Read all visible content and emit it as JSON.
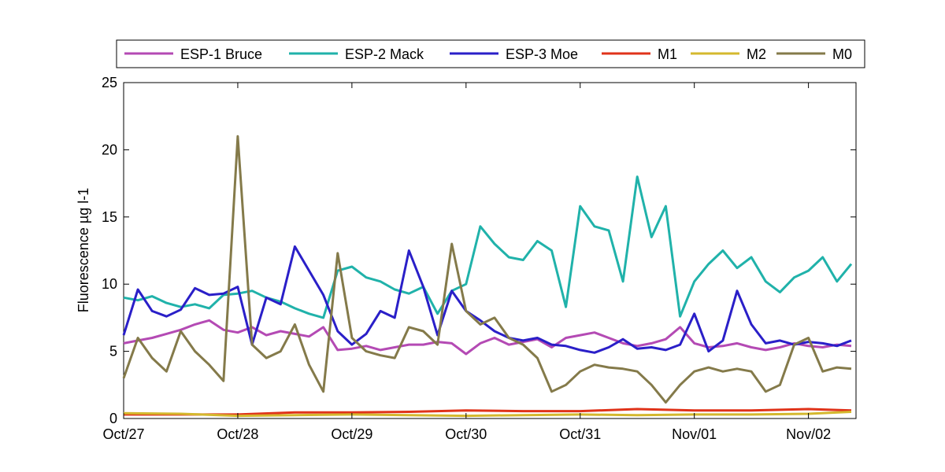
{
  "chart_data": {
    "type": "line",
    "title": "",
    "xlabel": "",
    "ylabel": "Fluorescence µg l-1",
    "xlim": [
      "2010-10-27",
      "2010-11-02T10:00"
    ],
    "ylim": [
      0,
      25
    ],
    "yticks": [
      0,
      5,
      10,
      15,
      20,
      25
    ],
    "xticks": [
      {
        "date": "2010-10-27",
        "label": "Oct/27"
      },
      {
        "date": "2010-10-28",
        "label": "Oct/28"
      },
      {
        "date": "2010-10-29",
        "label": "Oct/29"
      },
      {
        "date": "2010-10-30",
        "label": "Oct/30"
      },
      {
        "date": "2010-10-31",
        "label": "Oct/31"
      },
      {
        "date": "2010-11-01",
        "label": "Nov/01"
      },
      {
        "date": "2010-11-02",
        "label": "Nov/02"
      }
    ],
    "grid": false,
    "legend": "top, outside",
    "series": [
      {
        "name": "ESP-1 Bruce",
        "color": "#B44AB4",
        "points": [
          [
            "2010-10-27T00:00",
            5.6
          ],
          [
            "2010-10-27T03:00",
            5.8
          ],
          [
            "2010-10-27T06:00",
            6.0
          ],
          [
            "2010-10-27T09:00",
            6.3
          ],
          [
            "2010-10-27T12:00",
            6.6
          ],
          [
            "2010-10-27T15:00",
            7.0
          ],
          [
            "2010-10-27T18:00",
            7.3
          ],
          [
            "2010-10-27T21:00",
            6.6
          ],
          [
            "2010-10-28T00:00",
            6.4
          ],
          [
            "2010-10-28T03:00",
            6.8
          ],
          [
            "2010-10-28T06:00",
            6.2
          ],
          [
            "2010-10-28T09:00",
            6.5
          ],
          [
            "2010-10-28T12:00",
            6.3
          ],
          [
            "2010-10-28T15:00",
            6.1
          ],
          [
            "2010-10-28T18:00",
            6.8
          ],
          [
            "2010-10-28T21:00",
            5.1
          ],
          [
            "2010-10-29T00:00",
            5.2
          ],
          [
            "2010-10-29T03:00",
            5.4
          ],
          [
            "2010-10-29T06:00",
            5.1
          ],
          [
            "2010-10-29T09:00",
            5.3
          ],
          [
            "2010-10-29T12:00",
            5.5
          ],
          [
            "2010-10-29T15:00",
            5.5
          ],
          [
            "2010-10-29T18:00",
            5.7
          ],
          [
            "2010-10-29T21:00",
            5.6
          ],
          [
            "2010-10-30T00:00",
            4.8
          ],
          [
            "2010-10-30T03:00",
            5.6
          ],
          [
            "2010-10-30T06:00",
            6.0
          ],
          [
            "2010-10-30T09:00",
            5.5
          ],
          [
            "2010-10-30T12:00",
            5.7
          ],
          [
            "2010-10-30T15:00",
            5.9
          ],
          [
            "2010-10-30T18:00",
            5.3
          ],
          [
            "2010-10-30T21:00",
            6.0
          ],
          [
            "2010-10-31T00:00",
            6.2
          ],
          [
            "2010-10-31T03:00",
            6.4
          ],
          [
            "2010-10-31T06:00",
            6.0
          ],
          [
            "2010-10-31T09:00",
            5.6
          ],
          [
            "2010-10-31T12:00",
            5.4
          ],
          [
            "2010-10-31T15:00",
            5.6
          ],
          [
            "2010-10-31T18:00",
            5.9
          ],
          [
            "2010-10-31T21:00",
            6.8
          ],
          [
            "2010-11-01T00:00",
            5.6
          ],
          [
            "2010-11-01T03:00",
            5.3
          ],
          [
            "2010-11-01T06:00",
            5.4
          ],
          [
            "2010-11-01T09:00",
            5.6
          ],
          [
            "2010-11-01T12:00",
            5.3
          ],
          [
            "2010-11-01T15:00",
            5.1
          ],
          [
            "2010-11-01T18:00",
            5.3
          ],
          [
            "2010-11-01T21:00",
            5.6
          ],
          [
            "2010-11-02T00:00",
            5.4
          ],
          [
            "2010-11-02T03:00",
            5.3
          ],
          [
            "2010-11-02T06:00",
            5.5
          ],
          [
            "2010-11-02T09:00",
            5.4
          ]
        ]
      },
      {
        "name": "ESP-2 Mack",
        "color": "#20B2AA",
        "points": [
          [
            "2010-10-27T00:00",
            9.0
          ],
          [
            "2010-10-27T03:00",
            8.8
          ],
          [
            "2010-10-27T06:00",
            9.1
          ],
          [
            "2010-10-27T09:00",
            8.6
          ],
          [
            "2010-10-27T12:00",
            8.3
          ],
          [
            "2010-10-27T15:00",
            8.5
          ],
          [
            "2010-10-27T18:00",
            8.2
          ],
          [
            "2010-10-27T21:00",
            9.2
          ],
          [
            "2010-10-28T00:00",
            9.3
          ],
          [
            "2010-10-28T03:00",
            9.5
          ],
          [
            "2010-10-28T06:00",
            9.0
          ],
          [
            "2010-10-28T09:00",
            8.7
          ],
          [
            "2010-10-28T12:00",
            8.2
          ],
          [
            "2010-10-28T15:00",
            7.8
          ],
          [
            "2010-10-28T18:00",
            7.5
          ],
          [
            "2010-10-28T21:00",
            11.0
          ],
          [
            "2010-10-29T00:00",
            11.3
          ],
          [
            "2010-10-29T03:00",
            10.5
          ],
          [
            "2010-10-29T06:00",
            10.2
          ],
          [
            "2010-10-29T09:00",
            9.6
          ],
          [
            "2010-10-29T12:00",
            9.3
          ],
          [
            "2010-10-29T15:00",
            9.8
          ],
          [
            "2010-10-29T18:00",
            7.8
          ],
          [
            "2010-10-29T21:00",
            9.5
          ],
          [
            "2010-10-30T00:00",
            10.0
          ],
          [
            "2010-10-30T03:00",
            14.3
          ],
          [
            "2010-10-30T06:00",
            13.0
          ],
          [
            "2010-10-30T09:00",
            12.0
          ],
          [
            "2010-10-30T12:00",
            11.8
          ],
          [
            "2010-10-30T15:00",
            13.2
          ],
          [
            "2010-10-30T18:00",
            12.5
          ],
          [
            "2010-10-30T21:00",
            8.3
          ],
          [
            "2010-10-31T00:00",
            15.8
          ],
          [
            "2010-10-31T03:00",
            14.3
          ],
          [
            "2010-10-31T06:00",
            14.0
          ],
          [
            "2010-10-31T09:00",
            10.2
          ],
          [
            "2010-10-31T12:00",
            18.0
          ],
          [
            "2010-10-31T15:00",
            13.5
          ],
          [
            "2010-10-31T18:00",
            15.8
          ],
          [
            "2010-10-31T21:00",
            7.6
          ],
          [
            "2010-11-01T00:00",
            10.2
          ],
          [
            "2010-11-01T03:00",
            11.5
          ],
          [
            "2010-11-01T06:00",
            12.5
          ],
          [
            "2010-11-01T09:00",
            11.2
          ],
          [
            "2010-11-01T12:00",
            12.0
          ],
          [
            "2010-11-01T15:00",
            10.2
          ],
          [
            "2010-11-01T18:00",
            9.4
          ],
          [
            "2010-11-01T21:00",
            10.5
          ],
          [
            "2010-11-02T00:00",
            11.0
          ],
          [
            "2010-11-02T03:00",
            12.0
          ],
          [
            "2010-11-02T06:00",
            10.2
          ],
          [
            "2010-11-02T09:00",
            11.5
          ]
        ]
      },
      {
        "name": "ESP-3 Moe",
        "color": "#2A1FC8",
        "points": [
          [
            "2010-10-27T00:00",
            6.2
          ],
          [
            "2010-10-27T03:00",
            9.6
          ],
          [
            "2010-10-27T06:00",
            8.0
          ],
          [
            "2010-10-27T09:00",
            7.6
          ],
          [
            "2010-10-27T12:00",
            8.1
          ],
          [
            "2010-10-27T15:00",
            9.7
          ],
          [
            "2010-10-27T18:00",
            9.2
          ],
          [
            "2010-10-27T21:00",
            9.3
          ],
          [
            "2010-10-28T00:00",
            9.8
          ],
          [
            "2010-10-28T03:00",
            5.5
          ],
          [
            "2010-10-28T06:00",
            9.0
          ],
          [
            "2010-10-28T09:00",
            8.5
          ],
          [
            "2010-10-28T12:00",
            12.8
          ],
          [
            "2010-10-28T15:00",
            11.0
          ],
          [
            "2010-10-28T18:00",
            9.2
          ],
          [
            "2010-10-28T21:00",
            6.5
          ],
          [
            "2010-10-29T00:00",
            5.5
          ],
          [
            "2010-10-29T03:00",
            6.3
          ],
          [
            "2010-10-29T06:00",
            8.0
          ],
          [
            "2010-10-29T09:00",
            7.5
          ],
          [
            "2010-10-29T12:00",
            12.5
          ],
          [
            "2010-10-29T15:00",
            9.8
          ],
          [
            "2010-10-29T18:00",
            6.2
          ],
          [
            "2010-10-29T21:00",
            9.5
          ],
          [
            "2010-10-30T00:00",
            8.0
          ],
          [
            "2010-10-30T03:00",
            7.3
          ],
          [
            "2010-10-30T06:00",
            6.5
          ],
          [
            "2010-10-30T09:00",
            6.0
          ],
          [
            "2010-10-30T12:00",
            5.8
          ],
          [
            "2010-10-30T15:00",
            6.0
          ],
          [
            "2010-10-30T18:00",
            5.5
          ],
          [
            "2010-10-30T21:00",
            5.4
          ],
          [
            "2010-10-31T00:00",
            5.1
          ],
          [
            "2010-10-31T03:00",
            4.9
          ],
          [
            "2010-10-31T06:00",
            5.3
          ],
          [
            "2010-10-31T09:00",
            5.9
          ],
          [
            "2010-10-31T12:00",
            5.2
          ],
          [
            "2010-10-31T15:00",
            5.3
          ],
          [
            "2010-10-31T18:00",
            5.1
          ],
          [
            "2010-10-31T21:00",
            5.5
          ],
          [
            "2010-11-01T00:00",
            7.8
          ],
          [
            "2010-11-01T03:00",
            5.0
          ],
          [
            "2010-11-01T06:00",
            5.8
          ],
          [
            "2010-11-01T09:00",
            9.5
          ],
          [
            "2010-11-01T12:00",
            7.0
          ],
          [
            "2010-11-01T15:00",
            5.6
          ],
          [
            "2010-11-01T18:00",
            5.8
          ],
          [
            "2010-11-01T21:00",
            5.5
          ],
          [
            "2010-11-02T00:00",
            5.7
          ],
          [
            "2010-11-02T03:00",
            5.6
          ],
          [
            "2010-11-02T06:00",
            5.4
          ],
          [
            "2010-11-02T09:00",
            5.8
          ]
        ]
      },
      {
        "name": "M1",
        "color": "#E0331A",
        "points": [
          [
            "2010-10-27T00:00",
            0.3
          ],
          [
            "2010-10-27T12:00",
            0.3
          ],
          [
            "2010-10-28T00:00",
            0.3
          ],
          [
            "2010-10-28T12:00",
            0.45
          ],
          [
            "2010-10-29T00:00",
            0.45
          ],
          [
            "2010-10-29T12:00",
            0.5
          ],
          [
            "2010-10-30T00:00",
            0.6
          ],
          [
            "2010-10-30T12:00",
            0.55
          ],
          [
            "2010-10-31T00:00",
            0.55
          ],
          [
            "2010-10-31T12:00",
            0.7
          ],
          [
            "2010-11-01T00:00",
            0.6
          ],
          [
            "2010-11-01T12:00",
            0.6
          ],
          [
            "2010-11-02T00:00",
            0.7
          ],
          [
            "2010-11-02T09:00",
            0.6
          ]
        ]
      },
      {
        "name": "M2",
        "color": "#D4B82E",
        "points": [
          [
            "2010-10-27T00:00",
            0.4
          ],
          [
            "2010-10-27T12:00",
            0.35
          ],
          [
            "2010-10-28T00:00",
            0.2
          ],
          [
            "2010-10-28T12:00",
            0.25
          ],
          [
            "2010-10-29T00:00",
            0.3
          ],
          [
            "2010-10-29T12:00",
            0.25
          ],
          [
            "2010-10-30T00:00",
            0.2
          ],
          [
            "2010-10-30T12:00",
            0.25
          ],
          [
            "2010-10-31T00:00",
            0.3
          ],
          [
            "2010-10-31T12:00",
            0.25
          ],
          [
            "2010-11-01T00:00",
            0.3
          ],
          [
            "2010-11-01T12:00",
            0.3
          ],
          [
            "2010-11-02T00:00",
            0.35
          ],
          [
            "2010-11-02T09:00",
            0.5
          ]
        ]
      },
      {
        "name": "M0",
        "color": "#847A4A",
        "points": [
          [
            "2010-10-27T00:00",
            3.0
          ],
          [
            "2010-10-27T03:00",
            6.0
          ],
          [
            "2010-10-27T06:00",
            4.5
          ],
          [
            "2010-10-27T09:00",
            3.5
          ],
          [
            "2010-10-27T12:00",
            6.5
          ],
          [
            "2010-10-27T15:00",
            5.0
          ],
          [
            "2010-10-27T18:00",
            4.0
          ],
          [
            "2010-10-27T21:00",
            2.8
          ],
          [
            "2010-10-28T00:00",
            21.0
          ],
          [
            "2010-10-28T03:00",
            5.5
          ],
          [
            "2010-10-28T06:00",
            4.5
          ],
          [
            "2010-10-28T09:00",
            5.0
          ],
          [
            "2010-10-28T12:00",
            7.0
          ],
          [
            "2010-10-28T15:00",
            4.0
          ],
          [
            "2010-10-28T18:00",
            2.0
          ],
          [
            "2010-10-28T21:00",
            12.3
          ],
          [
            "2010-10-29T00:00",
            6.0
          ],
          [
            "2010-10-29T03:00",
            5.0
          ],
          [
            "2010-10-29T06:00",
            4.7
          ],
          [
            "2010-10-29T09:00",
            4.5
          ],
          [
            "2010-10-29T12:00",
            6.8
          ],
          [
            "2010-10-29T15:00",
            6.5
          ],
          [
            "2010-10-29T18:00",
            5.5
          ],
          [
            "2010-10-29T21:00",
            13.0
          ],
          [
            "2010-10-30T00:00",
            8.0
          ],
          [
            "2010-10-30T03:00",
            7.0
          ],
          [
            "2010-10-30T06:00",
            7.5
          ],
          [
            "2010-10-30T09:00",
            6.0
          ],
          [
            "2010-10-30T12:00",
            5.5
          ],
          [
            "2010-10-30T15:00",
            4.5
          ],
          [
            "2010-10-30T18:00",
            2.0
          ],
          [
            "2010-10-30T21:00",
            2.5
          ],
          [
            "2010-10-31T00:00",
            3.5
          ],
          [
            "2010-10-31T03:00",
            4.0
          ],
          [
            "2010-10-31T06:00",
            3.8
          ],
          [
            "2010-10-31T09:00",
            3.7
          ],
          [
            "2010-10-31T12:00",
            3.5
          ],
          [
            "2010-10-31T15:00",
            2.5
          ],
          [
            "2010-10-31T18:00",
            1.2
          ],
          [
            "2010-10-31T21:00",
            2.5
          ],
          [
            "2010-11-01T00:00",
            3.5
          ],
          [
            "2010-11-01T03:00",
            3.8
          ],
          [
            "2010-11-01T06:00",
            3.5
          ],
          [
            "2010-11-01T09:00",
            3.7
          ],
          [
            "2010-11-01T12:00",
            3.5
          ],
          [
            "2010-11-01T15:00",
            2.0
          ],
          [
            "2010-11-01T18:00",
            2.5
          ],
          [
            "2010-11-01T21:00",
            5.5
          ],
          [
            "2010-11-02T00:00",
            6.0
          ],
          [
            "2010-11-02T03:00",
            3.5
          ],
          [
            "2010-11-02T06:00",
            3.8
          ],
          [
            "2010-11-02T09:00",
            3.7
          ]
        ]
      }
    ]
  }
}
